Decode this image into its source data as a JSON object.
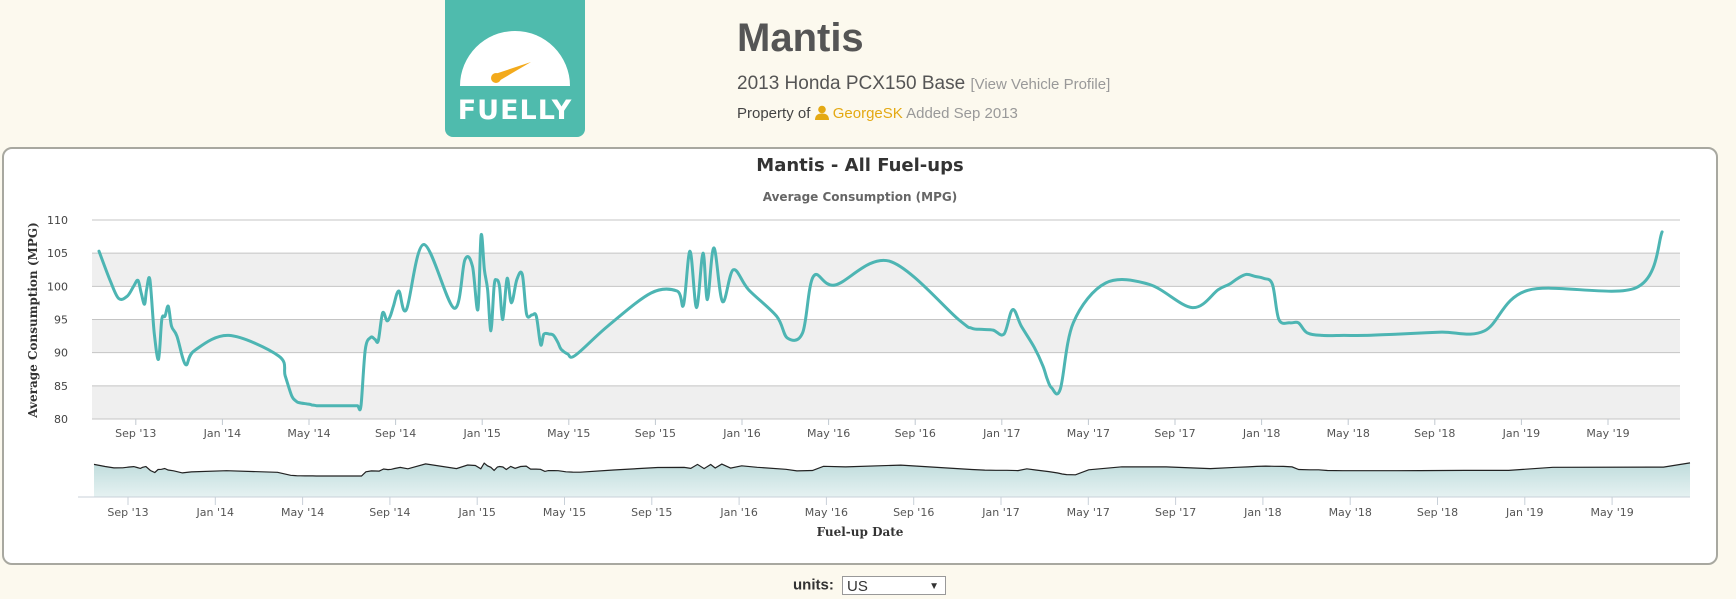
{
  "logo": {
    "text": "FUELLY",
    "bg_color": "#4fbbad",
    "needle_color": "#f3aa1c"
  },
  "vehicle": {
    "name": "Mantis",
    "model": "2013 Honda PCX150 Base",
    "profile_link": "[View Vehicle Profile]",
    "owner_prefix": "Property of",
    "owner_icon": "user-icon",
    "owner": "GeorgeSK",
    "added": "Added Sep 2013"
  },
  "controls": {
    "units_label": "units:",
    "units_value": "US"
  },
  "chart_data": {
    "type": "line",
    "title": "Mantis - All Fuel-ups",
    "subtitle": "Average Consumption (MPG)",
    "xlabel": "Fuel-up Date",
    "ylabel": "Average Consumption (MPG)",
    "ylim": [
      80,
      110
    ],
    "yticks": [
      80,
      85,
      90,
      95,
      100,
      105,
      110
    ],
    "xticks": [
      "Sep '13",
      "Jan '14",
      "May '14",
      "Sep '14",
      "Jan '15",
      "May '15",
      "Sep '15",
      "Jan '16",
      "May '16",
      "Sep '16",
      "Jan '17",
      "May '17",
      "Sep '17",
      "Jan '18",
      "May '18",
      "Sep '18",
      "Jan '19",
      "May '19"
    ],
    "grid": true,
    "alternating_bands": true,
    "line_color": "#4db5b3",
    "navigator": {
      "type": "area",
      "fill_top": "#bfdcdc",
      "fill_bottom": "#e6f2f2",
      "line_color": "#222222"
    },
    "series": [
      {
        "name": "Average Consumption (MPG)",
        "x_month_index": [
          0.0,
          0.5,
          0.9,
          1.3,
          1.6,
          1.8,
          1.95,
          2.1,
          2.2,
          2.35,
          2.55,
          2.75,
          2.9,
          3.05,
          3.2,
          3.35,
          3.6,
          4.0,
          4.4,
          6.0,
          8.3,
          8.6,
          8.9,
          9.1,
          9.2,
          9.35,
          9.55,
          9.75,
          9.85,
          9.9,
          10.05,
          10.2,
          10.35,
          10.55,
          10.75,
          10.95,
          11.2,
          11.35,
          11.5,
          11.65,
          11.8,
          11.95,
          12.1,
          12.3,
          12.55,
          12.75,
          12.9,
          13.1,
          13.3,
          13.45,
          13.6,
          13.85,
          14.2,
          15.0,
          16.4,
          16.9,
          17.25,
          17.5,
          17.65,
          17.8,
          17.95,
          18.1,
          18.25,
          18.35,
          18.5,
          18.65,
          18.85,
          19.05,
          19.3,
          19.55,
          19.75,
          20.0,
          20.2,
          20.4,
          20.55,
          20.8,
          21.0,
          21.2,
          21.35,
          21.65,
          22.0,
          23.5,
          25.5,
          26.7,
          27.0,
          27.3,
          27.6,
          27.9,
          28.1,
          28.4,
          28.8,
          29.3,
          30.0,
          31.3,
          31.8,
          32.5,
          33.0,
          34.0,
          36.5,
          39.7,
          40.3,
          40.8,
          41.3,
          41.8,
          42.2,
          42.6,
          43.2,
          43.6,
          43.8,
          44.0,
          44.4,
          45.0,
          46.5,
          48.5,
          50.5,
          51.7,
          52.2,
          52.6,
          53.0,
          53.4,
          53.8,
          54.2,
          54.5,
          55.0,
          55.4,
          55.8,
          56.5,
          57.5,
          58.5,
          60.0,
          62.0,
          64.0,
          66.0,
          71.0,
          72.2
        ],
        "values": [
          105.3,
          101,
          98.2,
          98.5,
          100,
          100.9,
          99,
          97.3,
          99.5,
          101,
          93,
          89,
          95,
          95.5,
          97,
          94,
          92.5,
          88.2,
          90.3,
          92.6,
          89.5,
          86.5,
          83.5,
          82.7,
          82.5,
          82.4,
          82.3,
          82.2,
          82.1,
          82.1,
          82,
          82,
          82,
          82,
          82,
          82,
          82,
          82,
          82,
          82,
          82,
          82,
          82,
          90.5,
          92.3,
          92,
          91.8,
          96,
          94.8,
          95.5,
          97,
          99.3,
          96.5,
          106.3,
          96.7,
          104,
          103,
          96.5,
          107.7,
          102.5,
          99.5,
          93.3,
          100,
          101,
          100,
          95,
          101.2,
          97.5,
          101,
          101.8,
          95.8,
          95.7,
          95.5,
          91.2,
          92.8,
          92.8,
          92.6,
          91.5,
          90.5,
          89.8,
          89.6,
          94,
          99,
          99.3,
          97.2,
          105.3,
          96.8,
          105,
          98,
          105.8,
          97.7,
          102.5,
          99.5,
          95.5,
          92.2,
          93,
          101.5,
          100.2,
          103.8,
          95,
          93.7,
          93.5,
          93.4,
          92.8,
          96.5,
          94,
          90.8,
          88,
          86,
          84.7,
          84.5,
          94.5,
          100.5,
          100.3,
          96.8,
          99.5,
          100.3,
          101.2,
          101.8,
          101.5,
          101.2,
          100.3,
          95,
          94.5,
          94.5,
          93,
          92.6,
          92.6,
          92.6,
          92.8,
          93.1,
          93.3,
          99.4,
          99.8,
          108.2
        ]
      }
    ]
  }
}
